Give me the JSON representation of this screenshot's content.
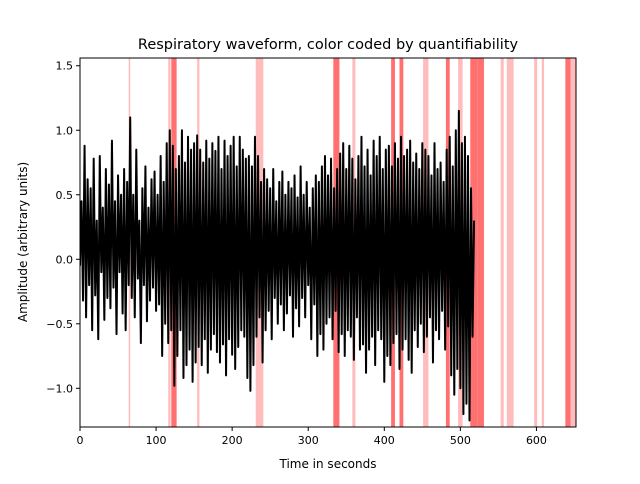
{
  "chart_data": {
    "type": "line",
    "title": "Respiratory waveform, color coded by quantifiability",
    "xlabel": "Time in seconds",
    "ylabel": "Amplitude (arbitrary units)",
    "xlim": [
      0,
      652
    ],
    "ylim": [
      -1.3,
      1.56
    ],
    "xticks": [
      0,
      100,
      200,
      300,
      400,
      500,
      600
    ],
    "yticks": [
      -1.0,
      -0.5,
      0.0,
      0.5,
      1.0,
      1.5
    ],
    "ytick_labels": [
      "−1.0",
      "−0.5",
      "0.0",
      "0.5",
      "1.0",
      "1.5"
    ],
    "grid": false,
    "legend": "none",
    "colors": {
      "waveform": "#000000",
      "unquantifiable_light": "#ffbcbc",
      "unquantifiable_dark": "#ff7070"
    },
    "series": [
      {
        "x_start": 0,
        "x_step": 2,
        "values": [
          -0.05,
          0.45,
          -0.32,
          0.88,
          -0.45,
          0.62,
          -0.2,
          0.55,
          -0.55,
          0.78,
          -0.28,
          0.3,
          -0.62,
          0.8,
          -0.1,
          0.4,
          -0.47,
          0.7,
          -0.3,
          0.58,
          -0.38,
          0.92,
          -0.22,
          0.45,
          -0.58,
          0.65,
          -0.1,
          0.5,
          -0.42,
          0.7,
          -0.55,
          0.6,
          -0.2,
          1.1,
          -0.3,
          0.5,
          -0.45,
          0.85,
          -0.15,
          0.3,
          -0.65,
          0.55,
          -0.2,
          0.72,
          -0.48,
          0.4,
          -0.32,
          0.62,
          -0.22,
          0.68,
          -0.4,
          0.5,
          -0.35,
          0.8,
          -0.75,
          0.6,
          -0.5,
          0.9,
          -0.65,
          1.0,
          -0.55,
          0.88,
          -0.98,
          0.7,
          -0.75,
          0.8,
          -0.55,
          1.0,
          -0.92,
          0.75,
          -0.82,
          0.95,
          -0.7,
          0.85,
          -0.95,
          0.9,
          -0.8,
          0.96,
          -0.68,
          0.85,
          -0.82,
          0.75,
          -0.62,
          0.92,
          -0.88,
          0.78,
          -0.7,
          0.9,
          -0.58,
          0.84,
          -0.72,
          0.95,
          -0.8,
          0.7,
          -0.66,
          0.92,
          -0.9,
          0.8,
          -0.62,
          0.88,
          -0.74,
          0.95,
          -0.85,
          0.72,
          -0.68,
          0.95,
          -0.55,
          0.85,
          -0.6,
          0.78,
          -0.92,
          0.8,
          -1.02,
          0.72,
          -0.82,
          0.95,
          -0.6,
          0.8,
          -0.45,
          0.6,
          -0.8,
          0.7,
          -0.55,
          0.62,
          -0.4,
          0.55,
          -0.62,
          0.7,
          -0.3,
          0.45,
          -0.5,
          0.6,
          -0.35,
          0.68,
          -0.55,
          0.5,
          -0.42,
          0.6,
          -0.28,
          0.55,
          -0.6,
          0.65,
          -0.38,
          0.48,
          -0.52,
          0.72,
          -0.3,
          0.5,
          -0.45,
          0.6,
          -0.2,
          0.4,
          -0.62,
          0.55,
          -0.35,
          0.65,
          -0.75,
          0.6,
          -0.58,
          0.72,
          -0.7,
          0.8,
          -0.5,
          0.65,
          -0.45,
          0.78,
          -0.62,
          0.55,
          -0.4,
          0.7,
          -0.72,
          0.82,
          -0.58,
          0.9,
          -0.75,
          0.7,
          -0.55,
          0.88,
          -0.6,
          0.78,
          -0.78,
          0.62,
          -0.45,
          0.8,
          -0.7,
          0.95,
          -0.66,
          0.72,
          -0.88,
          0.85,
          -0.7,
          0.65,
          -0.6,
          0.92,
          -0.82,
          0.8,
          -0.55,
          0.95,
          -0.62,
          0.7,
          -0.95,
          0.85,
          -0.75,
          0.88,
          -0.82,
          0.72,
          -0.65,
          0.9,
          -0.58,
          0.78,
          -0.85,
          0.95,
          -0.7,
          0.8,
          -0.62,
          0.85,
          -0.78,
          0.92,
          -0.88,
          0.75,
          -0.55,
          0.82,
          -0.68,
          0.7,
          -0.5,
          0.9,
          -0.72,
          0.85,
          -0.6,
          0.8,
          -0.45,
          0.65,
          -0.8,
          0.9,
          -0.55,
          0.7,
          -0.62,
          0.75,
          -0.4,
          0.6,
          -0.7,
          0.85,
          -0.52,
          0.95,
          -0.9,
          0.72,
          -1.05,
          1.0,
          -0.85,
          1.15,
          -1.0,
          0.9,
          -1.2,
          0.95,
          -1.12,
          0.8,
          -1.25,
          0.55,
          -0.6,
          0.3
        ]
      }
    ],
    "unquantifiable_intervals": [
      {
        "start": 64,
        "end": 66,
        "level": "light"
      },
      {
        "start": 116,
        "end": 119,
        "level": "light"
      },
      {
        "start": 120,
        "end": 127,
        "level": "dark"
      },
      {
        "start": 154,
        "end": 157,
        "level": "light"
      },
      {
        "start": 231,
        "end": 241,
        "level": "light"
      },
      {
        "start": 333,
        "end": 341,
        "level": "dark"
      },
      {
        "start": 358,
        "end": 362,
        "level": "light"
      },
      {
        "start": 409,
        "end": 414,
        "level": "dark"
      },
      {
        "start": 420,
        "end": 425,
        "level": "dark"
      },
      {
        "start": 451,
        "end": 458,
        "level": "light"
      },
      {
        "start": 481,
        "end": 486,
        "level": "dark"
      },
      {
        "start": 497,
        "end": 503,
        "level": "light"
      },
      {
        "start": 513,
        "end": 523,
        "level": "dark"
      },
      {
        "start": 523,
        "end": 531,
        "level": "dark"
      },
      {
        "start": 553,
        "end": 557,
        "level": "light"
      },
      {
        "start": 561,
        "end": 570,
        "level": "light"
      },
      {
        "start": 597,
        "end": 601,
        "level": "light"
      },
      {
        "start": 607,
        "end": 610,
        "level": "light"
      },
      {
        "start": 638,
        "end": 645,
        "level": "dark"
      },
      {
        "start": 645,
        "end": 652,
        "level": "light"
      }
    ]
  }
}
